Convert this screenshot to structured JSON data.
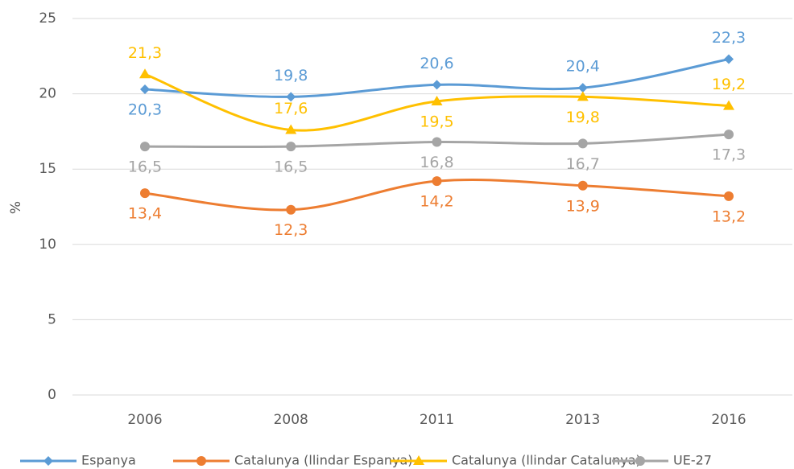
{
  "chart_data": {
    "type": "line",
    "categories": [
      "2006",
      "2008",
      "2011",
      "2013",
      "2016"
    ],
    "y_label": "%",
    "ylim": [
      0,
      25
    ],
    "yticks": [
      0,
      5,
      10,
      15,
      20,
      25
    ],
    "grid": true,
    "legend": "bottom",
    "series": [
      {
        "name": "Espanya",
        "color": "#5b9bd5",
        "marker": "diamond",
        "values": [
          20.3,
          19.8,
          20.6,
          20.4,
          22.3
        ],
        "value_labels": [
          "20,3",
          "19,8",
          "20,6",
          "20,4",
          "22,3"
        ]
      },
      {
        "name": "Catalunya (llindar Espanya)",
        "color": "#ed7d31",
        "marker": "circle",
        "values": [
          13.4,
          12.3,
          14.2,
          13.9,
          13.2
        ],
        "value_labels": [
          "13,4",
          "12,3",
          "14,2",
          "13,9",
          "13,2"
        ]
      },
      {
        "name": "Catalunya (llindar Catalunya)",
        "color": "#ffc000",
        "marker": "triangle",
        "values": [
          21.3,
          17.6,
          19.5,
          19.8,
          19.2
        ],
        "value_labels": [
          "21,3",
          "17,6",
          "19,5",
          "19,8",
          "19,2"
        ]
      },
      {
        "name": "UE-27",
        "color": "#a5a5a5",
        "marker": "circle",
        "values": [
          16.5,
          16.5,
          16.8,
          16.7,
          17.3
        ],
        "value_labels": [
          "16,5",
          "16,5",
          "16,8",
          "16,7",
          "17,3"
        ]
      }
    ]
  }
}
